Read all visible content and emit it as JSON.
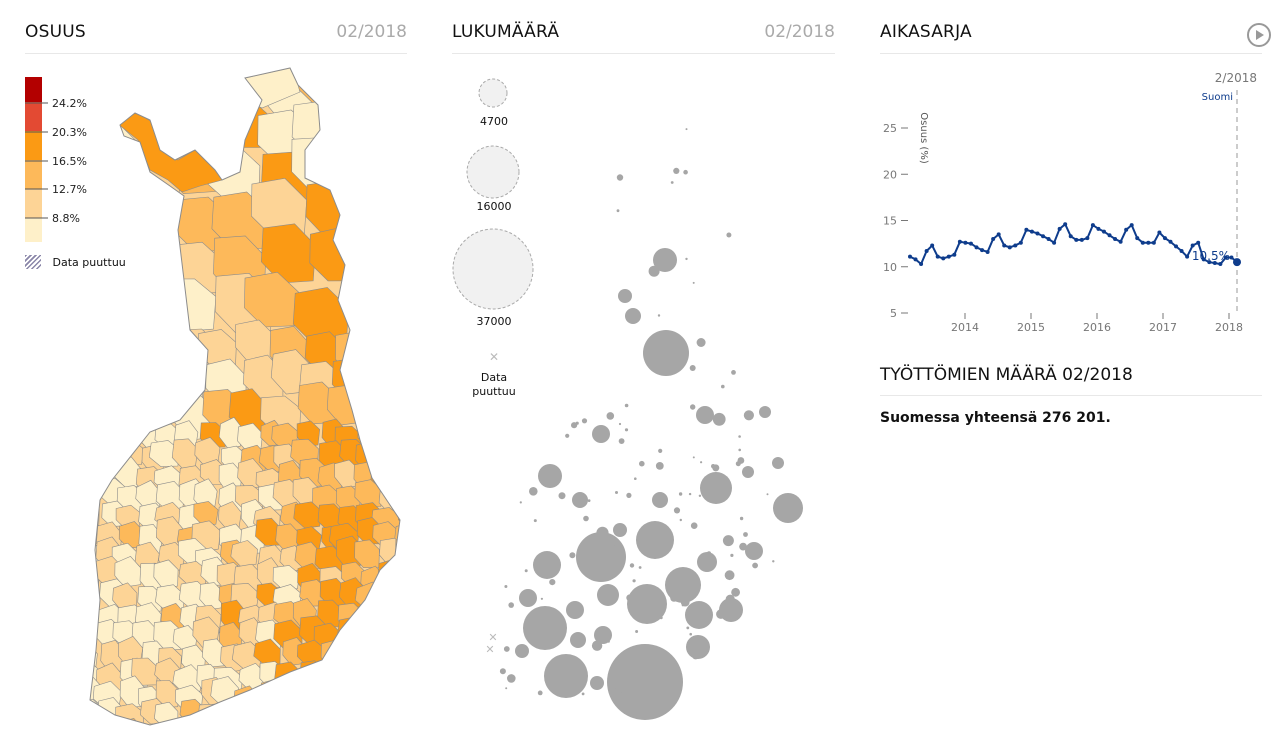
{
  "osuus": {
    "title": "OSUUS",
    "date": "02/2018",
    "legend": {
      "colors": [
        "#fef0c9",
        "#fdd496",
        "#fdb95a",
        "#fb9a14",
        "#e34a33",
        "#b30000"
      ],
      "thresholds": [
        "8.8%",
        "12.7%",
        "16.5%",
        "20.3%",
        "24.2%"
      ],
      "missing_label": "Data puuttuu"
    }
  },
  "lukumaara": {
    "title": "LUKUMÄÄRÄ",
    "date": "02/2018",
    "legend": {
      "sizes": [
        "4700",
        "16000",
        "37000"
      ],
      "missing_label_1": "Data",
      "missing_label_2": "puuttuu",
      "missing_icon": "x-icon"
    },
    "bubble_color": "#a6a6a6"
  },
  "aikasarja": {
    "title": "AIKASARJA",
    "play_icon": "play-icon",
    "current_period": "2/2018",
    "series_label": "Suomi",
    "value_label": "10.5%",
    "line_color": "#0e3c8c"
  },
  "chart_data": {
    "type": "line",
    "ylabel": "Osuus (%)",
    "xlabel": "",
    "ylim": [
      5,
      27
    ],
    "yticks": [
      "25",
      "20",
      "15",
      "10",
      "5"
    ],
    "xticks": [
      "2014",
      "2015",
      "2016",
      "2017",
      "2018"
    ],
    "x_start": "2013-03",
    "x_end": "2018-02",
    "series": [
      {
        "name": "Suomi",
        "values": [
          11.1,
          10.8,
          10.3,
          11.7,
          12.3,
          11.1,
          10.9,
          11.1,
          11.3,
          12.7,
          12.6,
          12.5,
          12.1,
          11.8,
          11.6,
          13.0,
          13.5,
          12.3,
          12.1,
          12.3,
          12.6,
          14.0,
          13.8,
          13.6,
          13.3,
          13.0,
          12.6,
          14.1,
          14.6,
          13.3,
          12.9,
          12.9,
          13.1,
          14.5,
          14.1,
          13.8,
          13.4,
          13.0,
          12.7,
          14.0,
          14.5,
          13.1,
          12.6,
          12.6,
          12.6,
          13.7,
          13.1,
          12.7,
          12.2,
          11.7,
          11.1,
          12.3,
          12.6,
          10.8,
          10.5,
          10.4,
          10.3,
          11.0,
          11.0,
          10.5
        ]
      }
    ]
  },
  "summary": {
    "title": "TYÖTTÖMIEN MÄÄRÄ 02/2018",
    "text": "Suomessa yhteensä 276 201."
  }
}
